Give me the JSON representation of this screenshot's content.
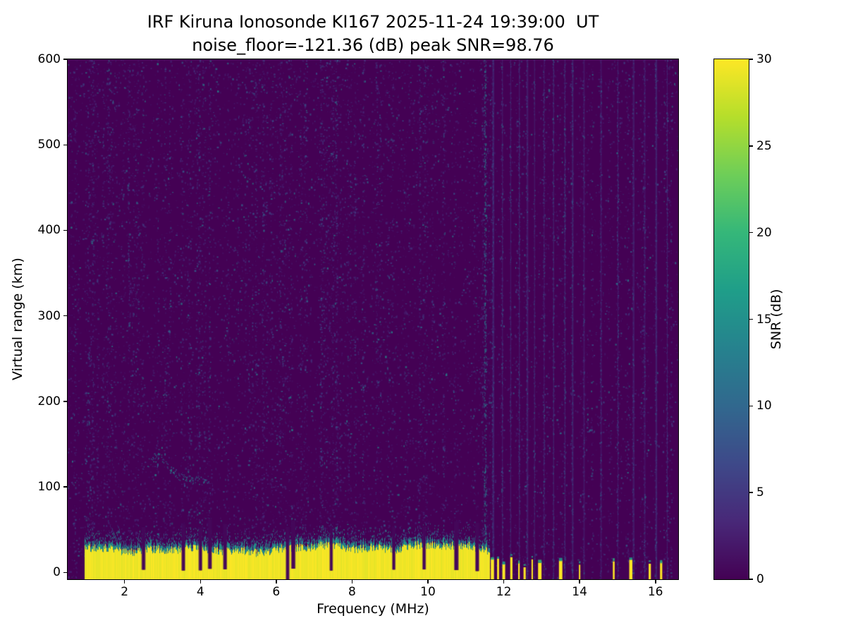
{
  "chart_data": {
    "type": "heatmap",
    "title": "IRF Kiruna Ionosonde KI167 2025-11-24 19:39:00  UT",
    "subtitle": "noise_floor=-121.36 (dB) peak SNR=98.76",
    "xlabel": "Frequency (MHz)",
    "ylabel": "Virtual range (km)",
    "xlim": [
      0.5,
      16.6
    ],
    "ylim": [
      -8,
      600
    ],
    "xticks": [
      2,
      4,
      6,
      8,
      10,
      12,
      14,
      16
    ],
    "yticks": [
      0,
      100,
      200,
      300,
      400,
      500,
      600
    ],
    "grid": false,
    "colorbar": {
      "label": "SNR (dB)",
      "min": 0,
      "max": 30,
      "ticks": [
        0,
        5,
        10,
        15,
        20,
        25,
        30
      ],
      "colormap": "viridis",
      "stops": [
        "#440154",
        "#482878",
        "#3e4989",
        "#31688e",
        "#26828e",
        "#1f9e89",
        "#35b779",
        "#6ece58",
        "#b5de2b",
        "#fde725"
      ]
    },
    "features": {
      "background_snr_db": 0.3,
      "noise_speckle": {
        "count": 30000,
        "mean_snr_db": 3.5,
        "max_snr_db": 14
      },
      "ground_clutter_band": {
        "freq_start_mhz": 0.95,
        "freq_end_mhz": 11.62,
        "mean_top_km": 28,
        "top_variation_km": 10,
        "snr_db": 30,
        "cap_snr_db": 15
      },
      "band_notches_mhz": [
        2.5,
        3.55,
        4.0,
        4.25,
        4.65,
        6.3,
        6.45,
        7.45,
        9.1,
        9.9,
        10.75,
        11.3
      ],
      "pre_cutoff_stripe_mhz": 11.5,
      "hf_stripes_mhz": [
        11.7,
        11.95,
        12.17,
        12.4,
        12.6,
        12.8,
        13.05,
        13.3,
        13.6,
        13.8,
        14.1,
        14.55,
        15.0,
        15.4,
        15.7,
        16.0,
        16.3
      ],
      "hf_ground_stubs_mhz": [
        11.7,
        11.85,
        12.0,
        12.2,
        12.4,
        12.55,
        12.75,
        12.95,
        13.5,
        14.0,
        14.9,
        15.35,
        15.85,
        16.15
      ],
      "echo_trace": {
        "freq_start_mhz": 2.6,
        "freq_end_mhz": 4.2,
        "range_km": [
          108,
          135
        ],
        "snr_db": 10
      }
    }
  }
}
